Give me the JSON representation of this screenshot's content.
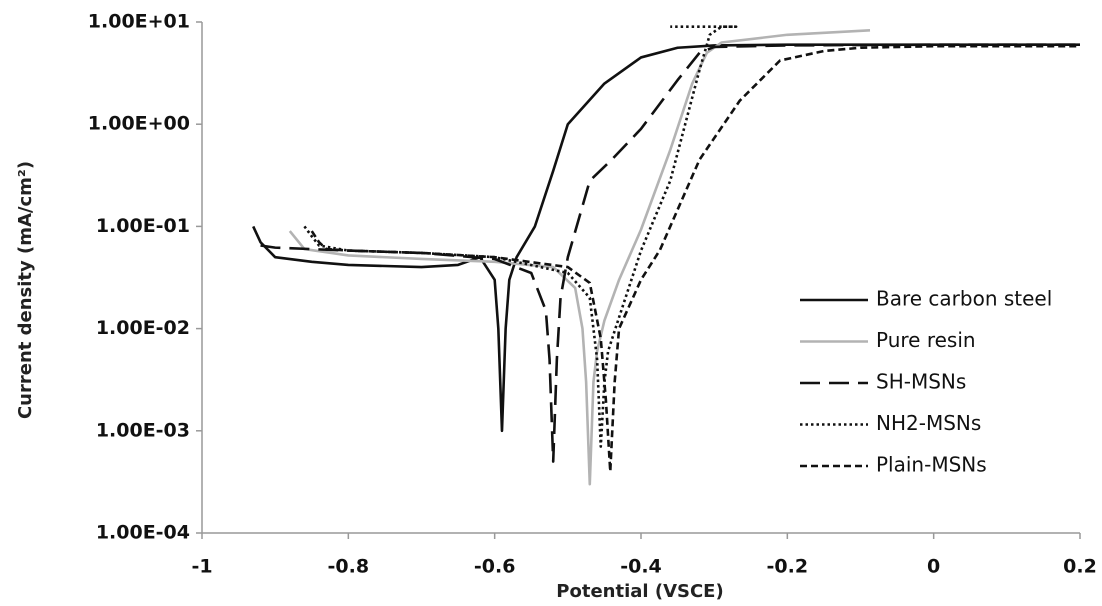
{
  "chart_data": {
    "type": "line",
    "x_label": "Potential (VSCE)",
    "y_label": "Current density (mA/cm²)",
    "xlim": [
      -1,
      0.2
    ],
    "xticks": [
      -1,
      -0.8,
      -0.6,
      -0.4,
      -0.2,
      0,
      0.2
    ],
    "ylim": [
      0.0001,
      10
    ],
    "ylog": true,
    "yticks": [
      {
        "value": 0.0001,
        "label": "1.00E-04"
      },
      {
        "value": 0.001,
        "label": "1.00E-03"
      },
      {
        "value": 0.01,
        "label": "1.00E-02"
      },
      {
        "value": 0.1,
        "label": "1.00E-01"
      },
      {
        "value": 1,
        "label": "1.00E+00"
      },
      {
        "value": 10,
        "label": "1.00E+01"
      }
    ],
    "grid": false,
    "legend_position": "right",
    "series": [
      {
        "name": "Bare carbon steel",
        "color": "#111111",
        "line_style": "solid",
        "x": [
          -0.93,
          -0.92,
          -0.9,
          -0.85,
          -0.8,
          -0.7,
          -0.65,
          -0.62,
          -0.6,
          -0.595,
          -0.59,
          -0.585,
          -0.58,
          -0.57,
          -0.545,
          -0.52,
          -0.5,
          -0.45,
          -0.4,
          -0.35,
          -0.3,
          -0.2,
          0,
          0.2
        ],
        "values": [
          0.1,
          0.07,
          0.05,
          0.045,
          0.042,
          0.04,
          0.042,
          0.05,
          0.03,
          0.01,
          0.001,
          0.01,
          0.03,
          0.05,
          0.1,
          0.35,
          1,
          2.5,
          4.5,
          5.6,
          5.9,
          6,
          6,
          6
        ]
      },
      {
        "name": "Pure resin",
        "color": "#b3b3b3",
        "line_style": "solid",
        "x": [
          -0.88,
          -0.86,
          -0.8,
          -0.7,
          -0.6,
          -0.52,
          -0.49,
          -0.48,
          -0.475,
          -0.47,
          -0.465,
          -0.46,
          -0.45,
          -0.43,
          -0.4,
          -0.36,
          -0.33,
          -0.31,
          -0.29,
          -0.2,
          -0.087
        ],
        "values": [
          0.09,
          0.06,
          0.052,
          0.048,
          0.045,
          0.04,
          0.025,
          0.01,
          0.003,
          0.0003,
          0.003,
          0.006,
          0.012,
          0.03,
          0.093,
          0.56,
          2.5,
          5,
          6.3,
          7.5,
          8.3
        ]
      },
      {
        "name": "SH-MSNs",
        "color": "#111111",
        "line_style": "long-dash",
        "x": [
          -0.92,
          -0.9,
          -0.8,
          -0.7,
          -0.6,
          -0.55,
          -0.53,
          -0.525,
          -0.52,
          -0.515,
          -0.51,
          -0.5,
          -0.47,
          -0.44,
          -0.4,
          -0.35,
          -0.32,
          -0.3,
          -0.2,
          0,
          0.2
        ],
        "values": [
          0.065,
          0.062,
          0.058,
          0.055,
          0.048,
          0.035,
          0.015,
          0.005,
          0.0005,
          0.005,
          0.02,
          0.05,
          0.28,
          0.45,
          0.9,
          2.7,
          5,
          5.7,
          5.9,
          6,
          6
        ]
      },
      {
        "name": "NH2-MSNs",
        "color": "#111111",
        "line_style": "dotted",
        "x": [
          -0.86,
          -0.85,
          -0.84,
          -0.8,
          -0.7,
          -0.6,
          -0.5,
          -0.47,
          -0.46,
          -0.455,
          -0.45,
          -0.445,
          -0.435,
          -0.4,
          -0.36,
          -0.32,
          -0.306,
          -0.29,
          -0.27,
          -0.36
        ],
        "values": [
          0.1,
          0.08,
          0.065,
          0.058,
          0.055,
          0.05,
          0.035,
          0.02,
          0.005,
          0.0007,
          0.003,
          0.006,
          0.01,
          0.058,
          0.28,
          3.4,
          7.5,
          9,
          9,
          9
        ]
      },
      {
        "name": "Plain-MSNs",
        "color": "#111111",
        "line_style": "dashed",
        "x": [
          -0.85,
          -0.84,
          -0.83,
          -0.8,
          -0.7,
          -0.6,
          -0.5,
          -0.47,
          -0.455,
          -0.448,
          -0.442,
          -0.436,
          -0.43,
          -0.4,
          -0.374,
          -0.32,
          -0.265,
          -0.21,
          -0.15,
          -0.1,
          0,
          0.2
        ],
        "values": [
          0.09,
          0.07,
          0.06,
          0.058,
          0.055,
          0.05,
          0.04,
          0.028,
          0.008,
          0.002,
          0.0004,
          0.003,
          0.01,
          0.03,
          0.059,
          0.45,
          1.7,
          4.2,
          5.2,
          5.6,
          5.8,
          5.8
        ]
      }
    ]
  }
}
